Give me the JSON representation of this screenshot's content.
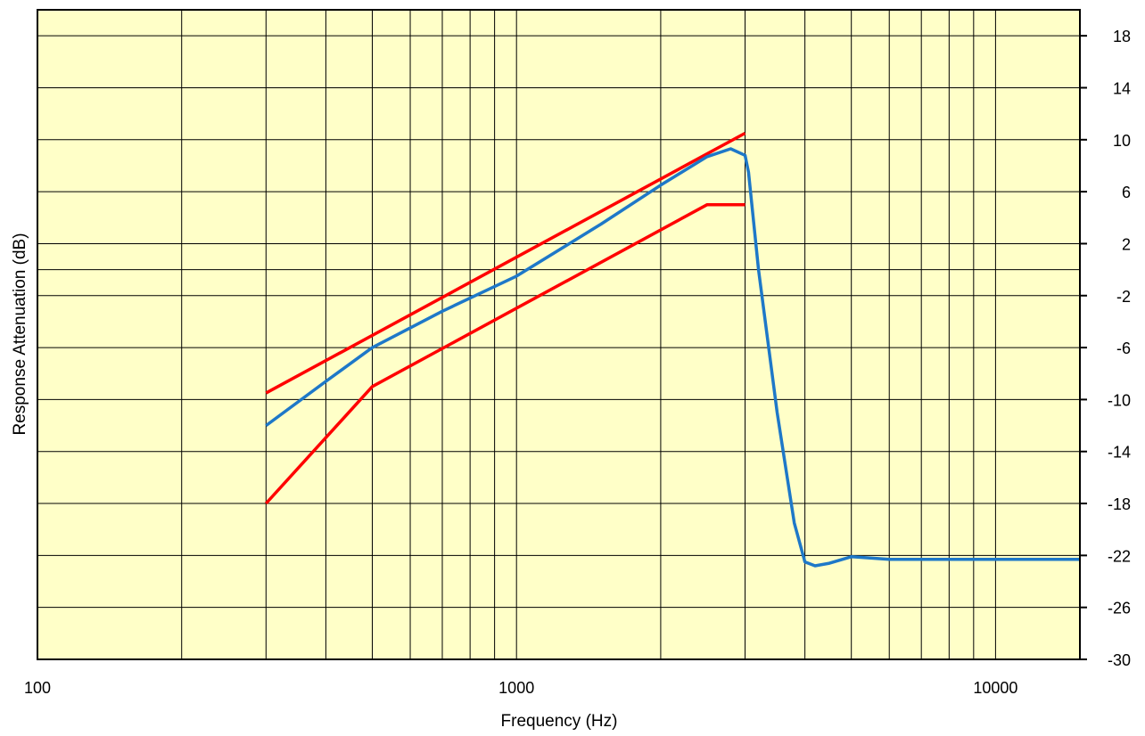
{
  "chart_data": {
    "type": "line",
    "title": "",
    "xlabel": "Frequency (Hz)",
    "ylabel": "Response Attenuation (dB)",
    "xscale": "log",
    "xlim": [
      100,
      15000
    ],
    "ylim": [
      -30,
      20
    ],
    "x_ticks": [
      100,
      1000,
      10000
    ],
    "x_tick_labels": [
      "100",
      "1000",
      "10000"
    ],
    "y_ticks": [
      -30,
      -26,
      -22,
      -18,
      -14,
      -10,
      -6,
      -2,
      2,
      6,
      10,
      14,
      18
    ],
    "y_tick_labels": [
      "-30",
      "-26",
      "-22",
      "-18",
      "-14",
      "-10",
      "-6",
      "-2",
      "2",
      "6",
      "10",
      "14",
      "18"
    ],
    "y_tick_side": "right",
    "grid": true,
    "background_color": "#FFFFC8",
    "series": [
      {
        "color": "#FF0000",
        "x": [
          300,
          3000
        ],
        "y": [
          -9.5,
          10.5
        ]
      },
      {
        "color": "#FF0000",
        "x": [
          300,
          500,
          2500,
          3000
        ],
        "y": [
          -18,
          -9,
          5,
          5
        ]
      },
      {
        "color": "#1E78C8",
        "x": [
          300,
          400,
          500,
          700,
          1000,
          1500,
          2000,
          2500,
          2800,
          3000,
          3050,
          3200,
          3500,
          3800,
          4000,
          4200,
          4500,
          5000,
          6000,
          8000,
          10000,
          15000
        ],
        "y": [
          -12,
          -8.6,
          -6,
          -3.2,
          -0.5,
          3.5,
          6.5,
          8.7,
          9.3,
          8.8,
          7.5,
          0,
          -11,
          -19.5,
          -22.5,
          -22.8,
          -22.6,
          -22.1,
          -22.3,
          -22.3,
          -22.3,
          -22.3
        ]
      }
    ]
  }
}
